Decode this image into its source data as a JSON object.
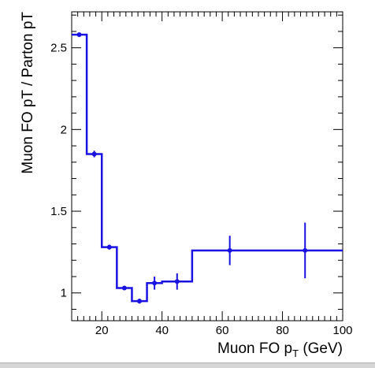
{
  "chart_data": {
    "type": "histogram",
    "title": "",
    "xlabel_main": "Muon FO p",
    "xlabel_sub": "T",
    "xlabel_unit": " (GeV)",
    "ylabel": "Muon FO pT / Parton pT",
    "xlim": [
      10,
      100
    ],
    "ylim": [
      0.83,
      2.72
    ],
    "grid": false,
    "legend": "none",
    "series_color": "#1a12e0",
    "xticks": [
      20,
      40,
      60,
      80,
      100
    ],
    "xtick_labels": [
      "20",
      "40",
      "60",
      "80",
      "100"
    ],
    "yticks": [
      1,
      1.5,
      2,
      2.5
    ],
    "ytick_labels": [
      "1",
      "1.5",
      "2",
      "2.5"
    ],
    "bin_edges": [
      10,
      15,
      20,
      25,
      30,
      35,
      40,
      50,
      75,
      100
    ],
    "bins": [
      {
        "x": 12.5,
        "value": 2.58,
        "err": 0.01
      },
      {
        "x": 17.5,
        "value": 1.85,
        "err": 0.02
      },
      {
        "x": 22.5,
        "value": 1.28,
        "err": 0.015
      },
      {
        "x": 27.5,
        "value": 1.03,
        "err": 0.01
      },
      {
        "x": 32.5,
        "value": 0.95,
        "err": 0.015
      },
      {
        "x": 37.5,
        "value": 1.06,
        "err": 0.04
      },
      {
        "x": 45.0,
        "value": 1.07,
        "err": 0.05
      },
      {
        "x": 62.5,
        "value": 1.26,
        "err": 0.09
      },
      {
        "x": 87.5,
        "value": 1.26,
        "err": 0.17
      }
    ]
  }
}
